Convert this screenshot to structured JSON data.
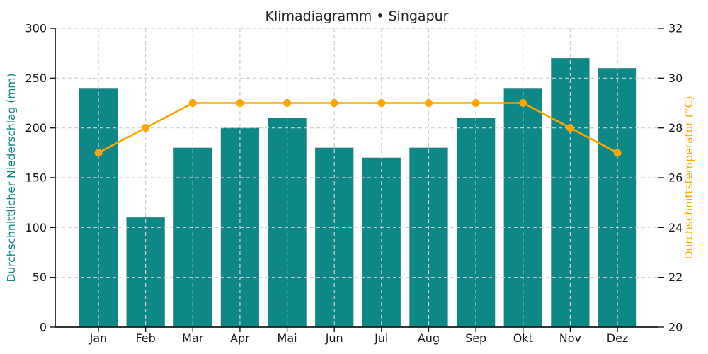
{
  "chart_data": {
    "type": "bar+line",
    "title": "Klimadiagramm • Singapur",
    "categories": [
      "Jan",
      "Feb",
      "Mar",
      "Apr",
      "Mai",
      "Jun",
      "Jul",
      "Aug",
      "Sep",
      "Okt",
      "Nov",
      "Dez"
    ],
    "series": [
      {
        "name": "Durchschnittlicher Niederschlag (mm)",
        "type": "bar",
        "axis": "left",
        "color": "#0e8787",
        "values": [
          240,
          110,
          180,
          200,
          210,
          180,
          170,
          180,
          210,
          240,
          270,
          260
        ]
      },
      {
        "name": "Durchschnittstemperatur (°C)",
        "type": "line",
        "axis": "right",
        "color": "#ffa500",
        "values": [
          27,
          28,
          29,
          29,
          29,
          29,
          29,
          29,
          29,
          29,
          28,
          27
        ]
      }
    ],
    "left_axis": {
      "label": "Durchschnittlicher Niederschlag (mm)",
      "color": "#0e8787",
      "min": 0,
      "max": 300,
      "step": 50,
      "ticks": [
        0,
        50,
        100,
        150,
        200,
        250,
        300
      ]
    },
    "right_axis": {
      "label": "Durchschnittstemperatur (°C)",
      "color": "#ffa500",
      "min": 20,
      "max": 32,
      "step": 2,
      "ticks": [
        20,
        22,
        24,
        26,
        28,
        30,
        32
      ]
    },
    "grid": true,
    "legend": "none",
    "colors": {
      "grid": "#cfcfcf",
      "spine": "#1a1a1a",
      "tick_text": "#1a1a1a",
      "title_text": "#262626",
      "background": "#ffffff"
    }
  }
}
